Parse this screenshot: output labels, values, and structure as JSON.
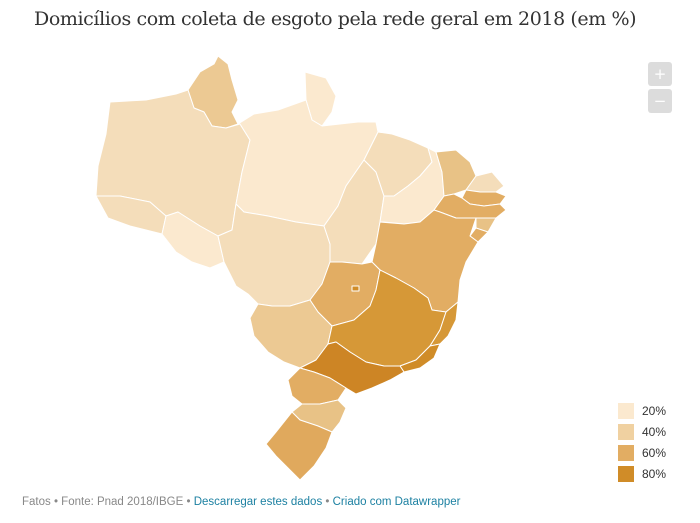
{
  "title": "Domicílios com coleta de esgoto pela rede geral em 2018 (em %)",
  "zoom": {
    "in_label": "+",
    "out_label": "−"
  },
  "legend": [
    {
      "label": "20%",
      "color": "#fbe9cf"
    },
    {
      "label": "40%",
      "color": "#f0d1a1"
    },
    {
      "label": "60%",
      "color": "#e2ad63"
    },
    {
      "label": "80%",
      "color": "#d08c28"
    }
  ],
  "regions": {
    "RR": "#ecc993",
    "AP": "#fbe9cf",
    "AM": "#f4ddba",
    "PA": "#fbe9cf",
    "AC": "#f4ddba",
    "RO": "#fbe9cf",
    "MT": "#f4ddba",
    "TO": "#f4ddba",
    "MA": "#f4ddba",
    "PI": "#fbe9cf",
    "CE": "#e8c286",
    "RN": "#f4ddba",
    "PB": "#e2ad63",
    "PE": "#e2ad63",
    "AL": "#e8c286",
    "SE": "#e2ad63",
    "BA": "#e2ad63",
    "GO": "#e2ad63",
    "DF": "#d08c28",
    "MS": "#ecc993",
    "MG": "#d69837",
    "ES": "#d69837",
    "RJ": "#d08c28",
    "SP": "#cd8525",
    "PR": "#e2ad63",
    "SC": "#e8c286",
    "RS": "#e0a95d"
  },
  "footer": {
    "prefix": "Fatos • Fonte: Pnad 2018/IBGE",
    "sep": " • ",
    "download_label": "Descarregar estes dados",
    "credit_label": "Criado com Datawrapper"
  }
}
